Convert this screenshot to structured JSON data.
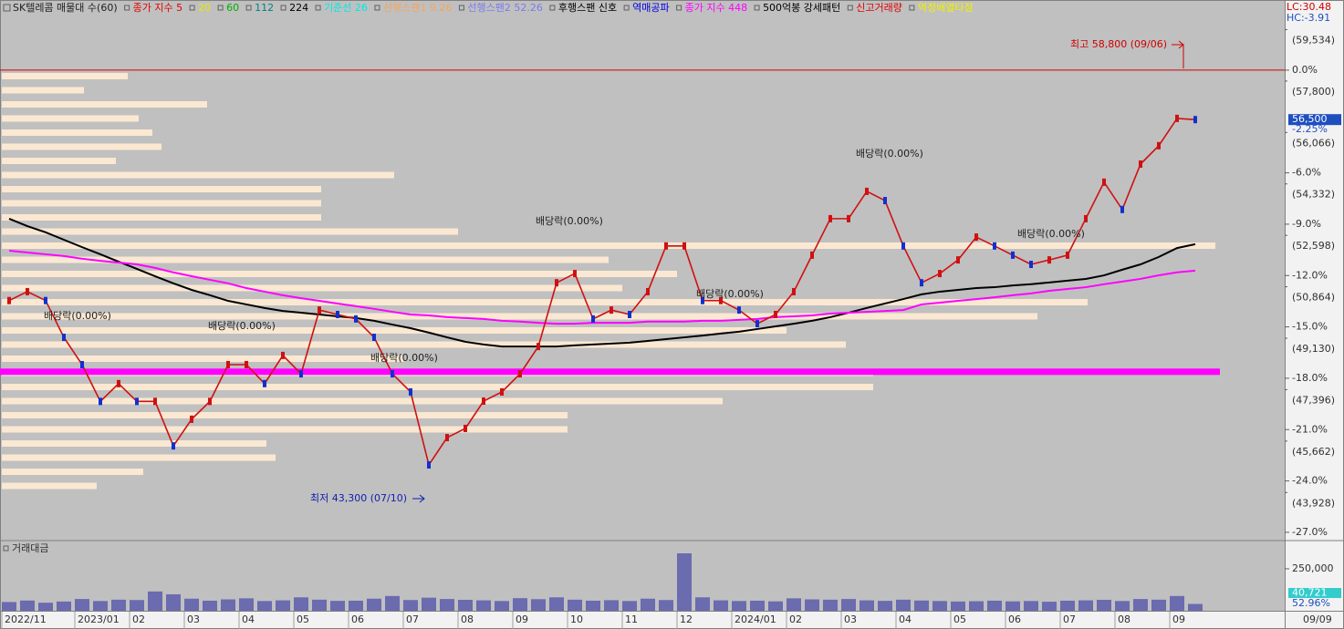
{
  "chart_data": {
    "type": "stock",
    "title": "SK텔레콤 매물대 수(60)",
    "legend": [
      {
        "name": "종가 지수 5",
        "color": "#e00000"
      },
      {
        "name": "20",
        "color": "#e8e800"
      },
      {
        "name": "60",
        "color": "#00b000"
      },
      {
        "name": "112",
        "color": "#008080"
      },
      {
        "name": "224",
        "color": "#000000"
      },
      {
        "name": "기준선 26",
        "color": "#00e8e8"
      },
      {
        "name": "선행스팬1 9.26",
        "color": "#f4a460"
      },
      {
        "name": "선행스팬2 52.26",
        "color": "#7b7bef"
      },
      {
        "name": "후행스팬 신호",
        "color": "#000000"
      },
      {
        "name": "역매공파",
        "color": "#0000e0"
      },
      {
        "name": "종가 지수 448",
        "color": "#ff00ff"
      },
      {
        "name": "500억봉 강세패턴",
        "color": "#000000"
      },
      {
        "name": "신고거래량",
        "color": "#e00000"
      },
      {
        "name": "역정배열타점",
        "color": "#f0f000"
      }
    ],
    "categories": [
      "2022/11",
      null,
      null,
      null,
      "2023/01",
      null,
      null,
      "02",
      null,
      null,
      "03",
      null,
      null,
      "04",
      null,
      null,
      "05",
      null,
      null,
      "06",
      null,
      null,
      "07",
      null,
      null,
      "08",
      null,
      null,
      "09",
      null,
      null,
      "10",
      null,
      null,
      "11",
      null,
      null,
      "12",
      null,
      null,
      "2024/01",
      null,
      null,
      "02",
      null,
      null,
      "03",
      null,
      null,
      "04",
      null,
      null,
      "05",
      null,
      null,
      "06",
      null,
      null,
      "07",
      null,
      null,
      "08",
      null,
      null,
      "09",
      null
    ],
    "series": [
      {
        "name": "224",
        "color": "#000000",
        "values": [
          53160,
          52910,
          52700,
          52450,
          52200,
          51960,
          51710,
          51470,
          51220,
          50980,
          50760,
          50580,
          50390,
          50270,
          50150,
          50050,
          49990,
          49930,
          49870,
          49810,
          49720,
          49590,
          49470,
          49320,
          49160,
          49010,
          48920,
          48850,
          48850,
          48850,
          48850,
          48890,
          48920,
          48950,
          48980,
          49040,
          49100,
          49160,
          49220,
          49290,
          49350,
          49440,
          49530,
          49620,
          49720,
          49840,
          49990,
          50150,
          50300,
          50450,
          50610,
          50700,
          50760,
          50820,
          50850,
          50910,
          50950,
          51010,
          51070,
          51130,
          51250,
          51440,
          51620,
          51870,
          52170,
          52300
        ]
      },
      {
        "name": "종가 지수 448",
        "color": "#ff00ff",
        "values": [
          52080,
          52020,
          51960,
          51900,
          51810,
          51740,
          51680,
          51620,
          51500,
          51350,
          51220,
          51100,
          50980,
          50820,
          50700,
          50580,
          50480,
          50390,
          50300,
          50210,
          50120,
          50020,
          49930,
          49900,
          49840,
          49810,
          49780,
          49720,
          49690,
          49650,
          49620,
          49620,
          49650,
          49650,
          49650,
          49690,
          49690,
          49690,
          49720,
          49720,
          49750,
          49780,
          49840,
          49870,
          49900,
          49960,
          49990,
          50020,
          50050,
          50080,
          50270,
          50330,
          50390,
          50450,
          50510,
          50580,
          50640,
          50730,
          50790,
          50850,
          50950,
          51040,
          51130,
          51250,
          51350,
          51410
        ]
      }
    ],
    "close": {
      "color": "#d01010",
      "values": [
        50400,
        50700,
        50400,
        49160,
        48240,
        47000,
        47600,
        47000,
        47000,
        45500,
        46400,
        47000,
        48240,
        48240,
        47600,
        48550,
        47930,
        50080,
        49930,
        49780,
        49160,
        47930,
        47320,
        44860,
        45780,
        46090,
        47010,
        47320,
        47930,
        48850,
        51000,
        51310,
        49780,
        50080,
        49930,
        50700,
        52240,
        52240,
        50400,
        50400,
        50080,
        49620,
        49930,
        50700,
        51930,
        53160,
        53160,
        54080,
        53770,
        52240,
        51000,
        51310,
        51770,
        52540,
        52240,
        51930,
        51620,
        51770,
        51930,
        53160,
        54390,
        53470,
        55000,
        55620,
        56540,
        56500
      ]
    },
    "support_line": {
      "value": 48000,
      "color": "#ff00ff"
    },
    "volume_profile": {
      "color": "#fbe8d2",
      "xlim": [
        0,
        1340
      ],
      "values": [
        138,
        90,
        225,
        150,
        165,
        175,
        125,
        430,
        350,
        350,
        350,
        500,
        1330,
        665,
        740,
        680,
        1190,
        1135,
        860,
        925,
        440,
        955,
        955,
        790,
        620,
        620,
        290,
        300,
        155,
        104
      ]
    },
    "ylim": [
      42340,
      60470
    ],
    "yticks": [
      {
        "value": 59534,
        "label": "(59,534)"
      },
      {
        "value": 57800,
        "label": "(57,800)"
      },
      {
        "value": 56066,
        "label": "(56,066)"
      },
      {
        "value": 54332,
        "label": "(54,332)"
      },
      {
        "value": 52598,
        "label": "(52,598)"
      },
      {
        "value": 50864,
        "label": "(50,864)"
      },
      {
        "value": 49130,
        "label": "(49,130)"
      },
      {
        "value": 47396,
        "label": "(47,396)"
      },
      {
        "value": 45662,
        "label": "(45,662)"
      },
      {
        "value": 43928,
        "label": "(43,928)"
      }
    ],
    "y2lim": [
      -27.43,
      3.99
    ],
    "y2ticks": [
      {
        "value": 0,
        "label": "0.0%"
      },
      {
        "value": -6,
        "label": "-6.0%"
      },
      {
        "value": -9,
        "label": "-9.0%"
      },
      {
        "value": -12,
        "label": "-12.0%"
      },
      {
        "value": -15,
        "label": "-15.0%"
      },
      {
        "value": -18,
        "label": "-18.0%"
      },
      {
        "value": -21,
        "label": "-21.0%"
      },
      {
        "value": -24,
        "label": "-24.0%"
      },
      {
        "value": -27,
        "label": "-27.0%"
      }
    ],
    "lc_label": "LC:30.48",
    "hc_label": "HC:-3.91",
    "current_price_label": "56,500",
    "current_pct_label": "-2.25%",
    "annotations": [
      "최고 58,800 (09/06)",
      "최저 43,300 (07/10)",
      "배당락(0.00%)",
      "배당락(0.00%)",
      "배당락(0.00%)",
      "배당락(0.00%)",
      "배당락(0.00%)",
      "배당락(0.00%)",
      "배당락(0.00%)"
    ],
    "volume": {
      "title": "거래대금",
      "color": "#6b6bb0",
      "values": [
        52000,
        61000,
        48000,
        55000,
        70000,
        58000,
        66000,
        64000,
        115000,
        98000,
        72000,
        60000,
        68000,
        74000,
        58000,
        62000,
        80000,
        66000,
        59000,
        60000,
        72000,
        88000,
        64000,
        78000,
        70000,
        65000,
        62000,
        58000,
        75000,
        69000,
        80000,
        66000,
        60000,
        63000,
        58000,
        72000,
        64000,
        342000,
        80000,
        62000,
        58000,
        60000,
        56000,
        74000,
        68000,
        66000,
        70000,
        62000,
        59000,
        66000,
        61000,
        58000,
        55000,
        57000,
        60000,
        56000,
        58000,
        54000,
        60000,
        62000,
        65000,
        58000,
        70000,
        66000,
        88000,
        40721
      ],
      "ylim": [
        0,
        380000
      ],
      "yticks": [
        {
          "value": 250000,
          "label": "250,000"
        }
      ],
      "current_label": "40,721",
      "current_pct_label": "52.96%"
    },
    "last_date": "09/09"
  }
}
